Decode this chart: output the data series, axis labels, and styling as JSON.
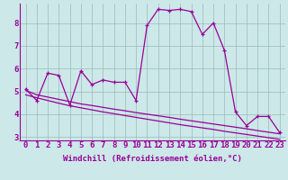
{
  "x": [
    0,
    1,
    2,
    3,
    4,
    5,
    6,
    7,
    8,
    9,
    10,
    11,
    12,
    13,
    14,
    15,
    16,
    17,
    18,
    19,
    20,
    21,
    22,
    23
  ],
  "y_main": [
    5.1,
    4.6,
    5.8,
    5.7,
    4.4,
    5.9,
    5.3,
    5.5,
    5.4,
    5.4,
    4.6,
    7.9,
    8.6,
    8.55,
    8.6,
    8.5,
    7.5,
    8.0,
    6.8,
    4.1,
    3.5,
    3.9,
    3.9,
    3.2
  ],
  "y_trend1": [
    5.05,
    4.85,
    4.75,
    4.65,
    4.55,
    4.45,
    4.38,
    4.3,
    4.22,
    4.15,
    4.07,
    4.0,
    3.93,
    3.86,
    3.78,
    3.71,
    3.64,
    3.57,
    3.5,
    3.43,
    3.36,
    3.28,
    3.21,
    3.14
  ],
  "y_trend2": [
    4.85,
    4.72,
    4.6,
    4.48,
    4.37,
    4.28,
    4.19,
    4.1,
    4.02,
    3.94,
    3.86,
    3.78,
    3.7,
    3.62,
    3.54,
    3.47,
    3.4,
    3.33,
    3.25,
    3.18,
    3.11,
    3.04,
    2.97,
    2.9
  ],
  "background_color": "#cce8e8",
  "line_color": "#990099",
  "grid_color": "#99bbbb",
  "xlabel": "Windchill (Refroidissement éolien,°C)",
  "ylim": [
    2.85,
    8.85
  ],
  "xlim_left": -0.5,
  "xlim_right": 23.5,
  "yticks": [
    3,
    4,
    5,
    6,
    7,
    8
  ],
  "xticks": [
    0,
    1,
    2,
    3,
    4,
    5,
    6,
    7,
    8,
    9,
    10,
    11,
    12,
    13,
    14,
    15,
    16,
    17,
    18,
    19,
    20,
    21,
    22,
    23
  ],
  "xlabel_fontsize": 6.5,
  "tick_fontsize": 6.5,
  "line_width": 0.9,
  "marker_size": 3.0
}
